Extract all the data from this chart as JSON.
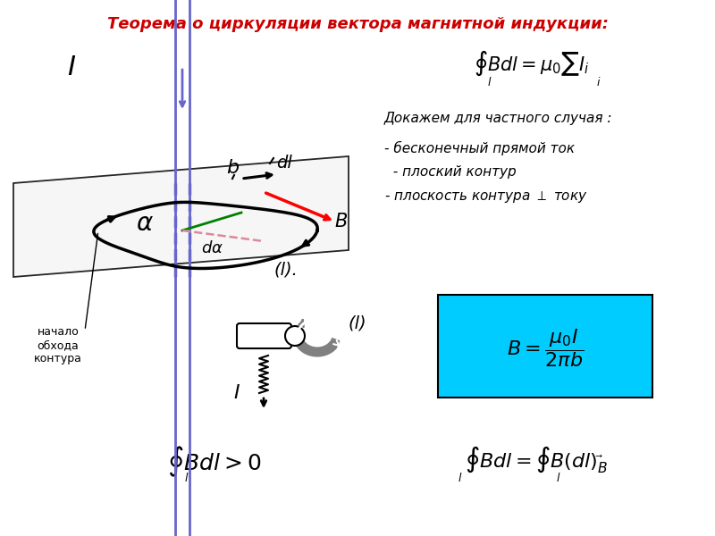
{
  "title": "Теорема о циркуляции вектора магнитной индукции:",
  "title_color": "#cc0000",
  "bg_color": "#ffffff",
  "label_nachal": "начало\nобхода\nконтура",
  "label_I": "I",
  "label_b": "b",
  "label_dl": "dl",
  "label_B": "B",
  "label_l_contour": "(l)",
  "label_I_bottom": "I",
  "label_l_bottom": "(l)",
  "blue_line_color": "#6666cc",
  "plane_face": "#f5f5f5",
  "formula_box_color": "#00ccff"
}
